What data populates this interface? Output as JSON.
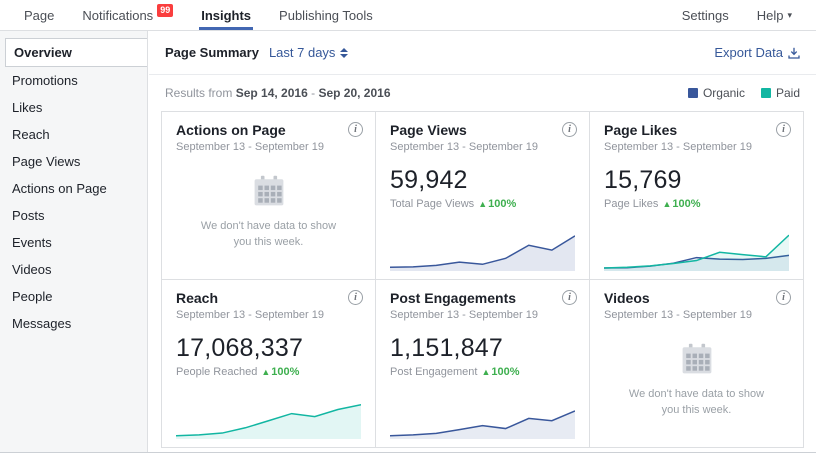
{
  "icons": {
    "info": "i",
    "caret": "▾",
    "up": "▲"
  },
  "navbar": {
    "page": "Page",
    "notifications": "Notifications",
    "badge": "99",
    "insights": "Insights",
    "publishing_tools": "Publishing Tools",
    "settings": "Settings",
    "help": "Help"
  },
  "sidebar": {
    "items": [
      {
        "label": "Overview",
        "selected": true
      },
      {
        "label": "Promotions"
      },
      {
        "label": "Likes"
      },
      {
        "label": "Reach"
      },
      {
        "label": "Page Views"
      },
      {
        "label": "Actions on Page"
      },
      {
        "label": "Posts"
      },
      {
        "label": "Events"
      },
      {
        "label": "Videos"
      },
      {
        "label": "People"
      },
      {
        "label": "Messages"
      }
    ]
  },
  "summary": {
    "title": "Page Summary",
    "range": "Last 7 days",
    "export": "Export Data"
  },
  "results": {
    "prefix": "Results from",
    "start_date": "Sep 14, 2016",
    "separator": "-",
    "end_date": "Sep 20, 2016"
  },
  "legend": {
    "organic_label": "Organic",
    "paid_label": "Paid",
    "organic_color": "#39579b",
    "paid_color": "#12b6a2"
  },
  "colors": {
    "organic": "#39579b",
    "paid": "#12b6a2",
    "positive": "#3eaf4f"
  },
  "cards": [
    {
      "title": "Actions on Page",
      "subtitle": "September 13 - September 19",
      "empty_text": "We don't have data to show you this week."
    },
    {
      "title": "Page Views",
      "subtitle": "September 13 - September 19",
      "value": "59,942",
      "metric": "Total Page Views",
      "delta": "100%",
      "chart": {
        "type": "line",
        "series": [
          {
            "name": "Organic",
            "color": "#39579b",
            "fill": "rgba(57,87,155,0.14)",
            "values": [
              0.4,
              0.5,
              0.9,
              1.8,
              1.2,
              2.8,
              6.3,
              5.0,
              8.8
            ]
          }
        ]
      }
    },
    {
      "title": "Page Likes",
      "subtitle": "September 13 - September 19",
      "value": "15,769",
      "metric": "Page Likes",
      "delta": "100%",
      "chart": {
        "type": "line",
        "series": [
          {
            "name": "Organic",
            "color": "#39579b",
            "fill": "rgba(57,87,155,0.10)",
            "values": [
              0.2,
              0.3,
              0.7,
              1.5,
              3.0,
              2.6,
              2.5,
              2.8,
              3.6
            ]
          },
          {
            "name": "Paid",
            "color": "#12b6a2",
            "fill": "rgba(18,182,162,0.10)",
            "values": [
              0.2,
              0.4,
              0.8,
              1.4,
              2.2,
              4.4,
              3.8,
              3.2,
              9.0
            ]
          }
        ]
      }
    },
    {
      "title": "Reach",
      "subtitle": "September 13 - September 19",
      "value": "17,068,337",
      "metric": "People Reached",
      "delta": "100%",
      "chart": {
        "type": "line",
        "series": [
          {
            "name": "Paid",
            "color": "#12b6a2",
            "fill": "rgba(18,182,162,0.12)",
            "values": [
              0.3,
              0.5,
              1.0,
              2.4,
              4.3,
              6.2,
              5.4,
              7.3,
              8.6
            ]
          }
        ]
      }
    },
    {
      "title": "Post Engagements",
      "subtitle": "September 13 - September 19",
      "value": "1,151,847",
      "metric": "Post Engagement",
      "delta": "100%",
      "chart": {
        "type": "line",
        "series": [
          {
            "name": "Organic",
            "color": "#39579b",
            "fill": "rgba(57,87,155,0.12)",
            "values": [
              0.3,
              0.5,
              0.9,
              1.9,
              3.0,
              2.2,
              4.9,
              4.3,
              6.9
            ]
          }
        ]
      }
    },
    {
      "title": "Videos",
      "subtitle": "September 13 - September 19",
      "empty_text": "We don't have data to show you this week."
    }
  ]
}
